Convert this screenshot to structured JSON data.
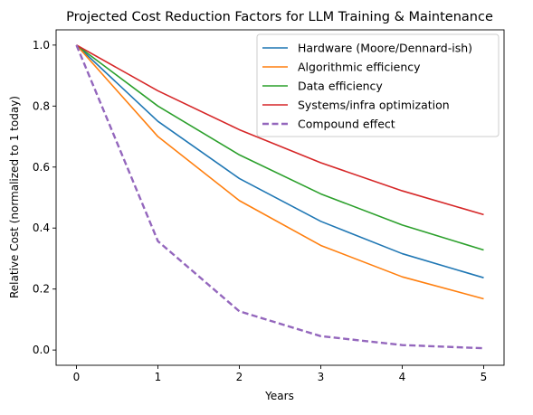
{
  "chart_data": {
    "type": "line",
    "title": "Projected Cost Reduction Factors for LLM Training & Maintenance",
    "xlabel": "Years",
    "ylabel": "Relative Cost (normalized to 1 today)",
    "x": [
      0,
      1,
      2,
      3,
      4,
      5
    ],
    "xlim": [
      -0.25,
      5.25
    ],
    "ylim": [
      -0.05,
      1.05
    ],
    "xticks": [
      "0",
      "1",
      "2",
      "3",
      "4",
      "5"
    ],
    "yticks": [
      "0.0",
      "0.2",
      "0.4",
      "0.6",
      "0.8",
      "1.0"
    ],
    "grid": false,
    "legend_position": "top-right",
    "series": [
      {
        "name": "Hardware (Moore/Dennard-ish)",
        "color": "#1f77b4",
        "style": "solid",
        "values": [
          1.0,
          0.75,
          0.5625,
          0.422,
          0.316,
          0.237
        ]
      },
      {
        "name": "Algorithmic efficiency",
        "color": "#ff7f0e",
        "style": "solid",
        "values": [
          1.0,
          0.7,
          0.49,
          0.343,
          0.24,
          0.168
        ]
      },
      {
        "name": "Data efficiency",
        "color": "#2ca02c",
        "style": "solid",
        "values": [
          1.0,
          0.8,
          0.64,
          0.512,
          0.41,
          0.328
        ]
      },
      {
        "name": "Systems/infra optimization",
        "color": "#d62728",
        "style": "solid",
        "values": [
          1.0,
          0.85,
          0.7225,
          0.614,
          0.522,
          0.444
        ]
      },
      {
        "name": "Compound effect",
        "color": "#9467bd",
        "style": "dashed",
        "values": [
          1.0,
          0.357,
          0.127,
          0.0455,
          0.0163,
          0.0058
        ]
      }
    ]
  }
}
